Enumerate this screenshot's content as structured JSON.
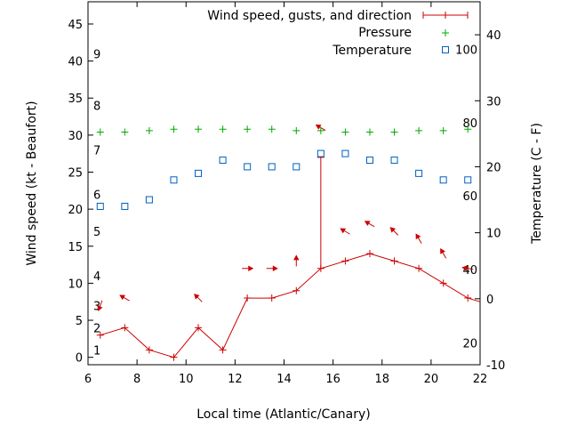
{
  "chart_data": {
    "type": "line",
    "xlabel": "Local time (Atlantic/Canary)",
    "ylabel_left": "Wind speed (kt - Beaufort)",
    "ylabel_right": "Temperature (C - F)",
    "xlim": [
      6,
      22
    ],
    "ylim_left": [
      -1,
      48
    ],
    "ylim_right": [
      -10,
      45
    ],
    "x_ticks": [
      6,
      8,
      10,
      12,
      14,
      16,
      18,
      20,
      22
    ],
    "y_left_ticks": [
      0,
      5,
      10,
      15,
      20,
      25,
      30,
      35,
      40,
      45
    ],
    "y_right_ticks": [
      -10,
      0,
      10,
      20,
      30,
      40
    ],
    "beaufort_labels": [
      {
        "label": "1",
        "kt": 1
      },
      {
        "label": "2",
        "kt": 4
      },
      {
        "label": "3",
        "kt": 7
      },
      {
        "label": "4",
        "kt": 11
      },
      {
        "label": "5",
        "kt": 17
      },
      {
        "label": "6",
        "kt": 22
      },
      {
        "label": "7",
        "kt": 28
      },
      {
        "label": "8",
        "kt": 34
      },
      {
        "label": "9",
        "kt": 41
      }
    ],
    "fahrenheit_labels": [
      {
        "label": "20",
        "c": -6.7
      },
      {
        "label": "40",
        "c": 4.4
      },
      {
        "label": "60",
        "c": 15.6
      },
      {
        "label": "80",
        "c": 26.7
      },
      {
        "label": "100",
        "c": 37.8
      }
    ],
    "legend": [
      {
        "label": "Wind speed, gusts, and direction",
        "color": "#cc0000",
        "marker": "line-plus"
      },
      {
        "label": "Pressure",
        "color": "#00aa00",
        "marker": "plus"
      },
      {
        "label": "Temperature",
        "color": "#0060c0",
        "marker": "square"
      }
    ],
    "series": [
      {
        "name": "Wind speed",
        "color": "#cc0000",
        "x": [
          6.5,
          7.5,
          8.5,
          9.5,
          10.5,
          11.5,
          12.5,
          13.5,
          14.5,
          15.5,
          16.5,
          17.5,
          18.5,
          19.5,
          20.5,
          21.5,
          22
        ],
        "y": [
          3,
          4,
          1,
          0,
          4,
          1,
          8,
          8,
          9,
          12,
          13,
          14,
          13,
          12,
          10,
          8,
          7.5
        ]
      },
      {
        "name": "Gust",
        "color": "#cc0000",
        "x": [
          15.5
        ],
        "y_from": [
          12
        ],
        "y_to": [
          27
        ]
      },
      {
        "name": "Direction arrows",
        "color": "#cc0000",
        "x": [
          6.5,
          7.5,
          10.5,
          12.5,
          13.5,
          14.5,
          15.5,
          16.5,
          17.5,
          18.5,
          19.5,
          20.5,
          21.5
        ],
        "y": [
          7,
          8,
          8,
          12,
          12,
          13,
          31,
          17,
          18,
          17,
          16,
          14,
          12
        ],
        "direction_deg": [
          200,
          300,
          315,
          90,
          90,
          0,
          300,
          300,
          300,
          315,
          330,
          330,
          280
        ]
      },
      {
        "name": "Pressure",
        "color": "#00aa00",
        "x": [
          6.5,
          7.5,
          8.5,
          9.5,
          10.5,
          11.5,
          12.5,
          13.5,
          14.5,
          15.5,
          16.5,
          17.5,
          18.5,
          19.5,
          20.5,
          21.5
        ],
        "y": [
          30.4,
          30.4,
          30.6,
          30.8,
          30.8,
          30.8,
          30.8,
          30.8,
          30.6,
          30.6,
          30.4,
          30.4,
          30.4,
          30.6,
          30.6,
          30.8
        ]
      },
      {
        "name": "Temperature",
        "color": "#0060c0",
        "x": [
          6.5,
          7.5,
          8.5,
          9.5,
          10.5,
          11.5,
          12.5,
          13.5,
          14.5,
          15.5,
          16.5,
          17.5,
          18.5,
          19.5,
          20.5,
          21.5
        ],
        "y": [
          14,
          14,
          15,
          18,
          19,
          21,
          20,
          20,
          20,
          22,
          22,
          21,
          21,
          19,
          18,
          18
        ]
      }
    ]
  }
}
